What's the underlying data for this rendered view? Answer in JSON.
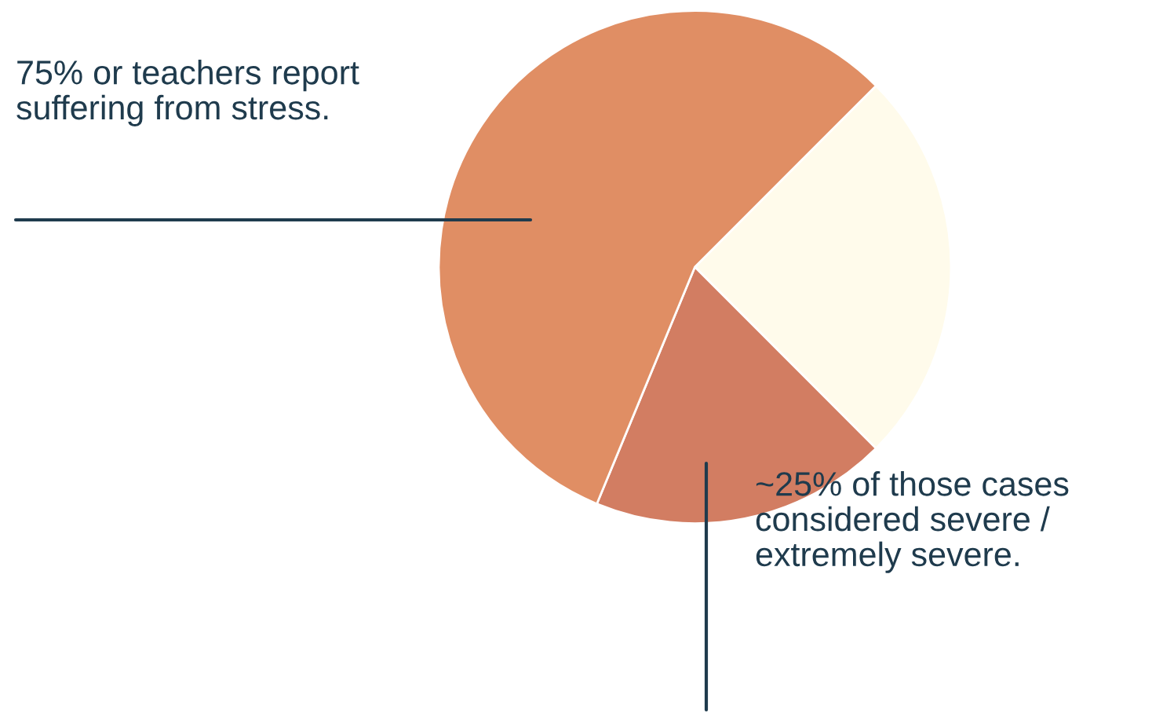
{
  "chart_data": {
    "type": "pie",
    "categories": [
      null,
      null,
      null
    ],
    "values": [
      25,
      18.75,
      56.25
    ],
    "colors": [
      "#FFFBEB",
      "#D27D62",
      "#E08E64"
    ],
    "annotations": [
      "75% or teachers report\nsuffering from stress.",
      "~25% of those cases\nconsidered severe /\nextremely severe."
    ]
  }
}
